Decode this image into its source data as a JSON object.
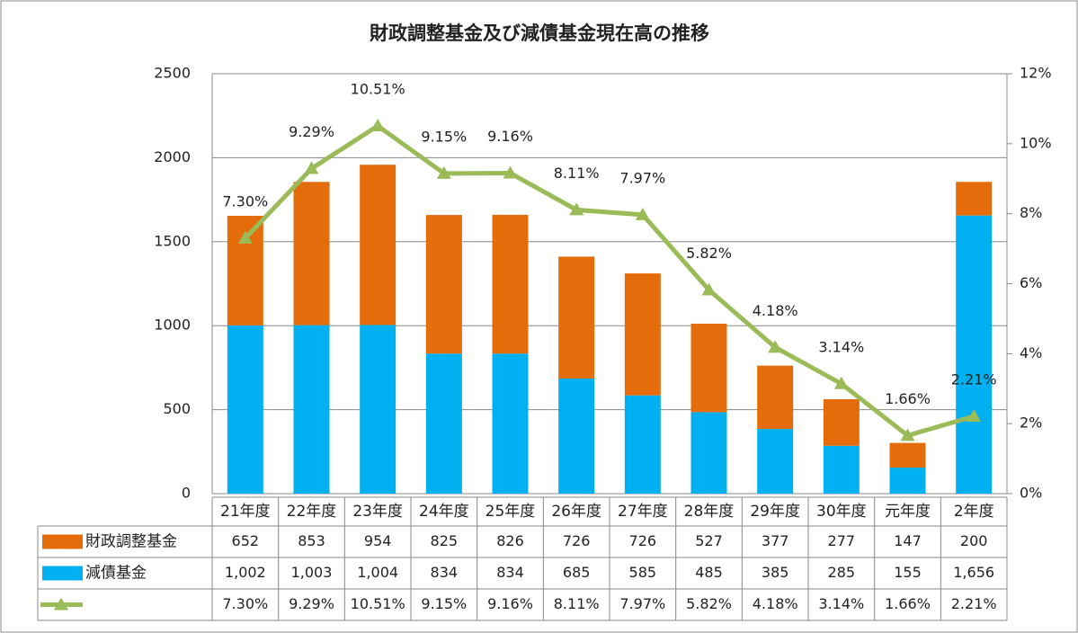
{
  "chart_data": {
    "type": "bar",
    "title": "財政調整基金及び減債基金現在高の推移",
    "categories": [
      "21年度",
      "22年度",
      "23年度",
      "24年度",
      "25年度",
      "26年度",
      "27年度",
      "28年度",
      "29年度",
      "30年度",
      "元年度",
      "2年度"
    ],
    "series": [
      {
        "name": "財政調整基金",
        "color": "#e46c0a",
        "values": [
          652,
          853,
          954,
          825,
          826,
          726,
          726,
          527,
          377,
          277,
          147,
          200
        ]
      },
      {
        "name": "減債基金",
        "color": "#00b0f0",
        "values": [
          1002,
          1003,
          1004,
          834,
          834,
          685,
          585,
          485,
          385,
          285,
          155,
          1656
        ],
        "value_labels": [
          "1,002",
          "1,003",
          "1,004",
          "834",
          "834",
          "685",
          "585",
          "485",
          "385",
          "285",
          "155",
          "1,656"
        ]
      },
      {
        "type": "line",
        "axis": "y2",
        "color": "#9bbb59",
        "values": [
          7.3,
          9.29,
          10.51,
          9.15,
          9.16,
          8.11,
          7.97,
          5.82,
          4.18,
          3.14,
          1.66,
          2.21
        ],
        "value_labels": [
          "7.30%",
          "9.29%",
          "10.51%",
          "9.15%",
          "9.16%",
          "8.11%",
          "7.97%",
          "5.82%",
          "4.18%",
          "3.14%",
          "1.66%",
          "2.21%"
        ]
      }
    ],
    "ylim": [
      0,
      2500
    ],
    "yticks": [
      0,
      500,
      1000,
      1500,
      2000,
      2500
    ],
    "y2lim": [
      0,
      12
    ],
    "y2ticks": [
      {
        "value": 0,
        "label": "0%"
      },
      {
        "value": 2,
        "label": "2%"
      },
      {
        "value": 4,
        "label": "4%"
      },
      {
        "value": 6,
        "label": "6%"
      },
      {
        "value": 8,
        "label": "8%"
      },
      {
        "value": 10,
        "label": "10%"
      },
      {
        "value": 12,
        "label": "12%"
      }
    ],
    "grid": true,
    "stacked": true,
    "data_table": true
  }
}
